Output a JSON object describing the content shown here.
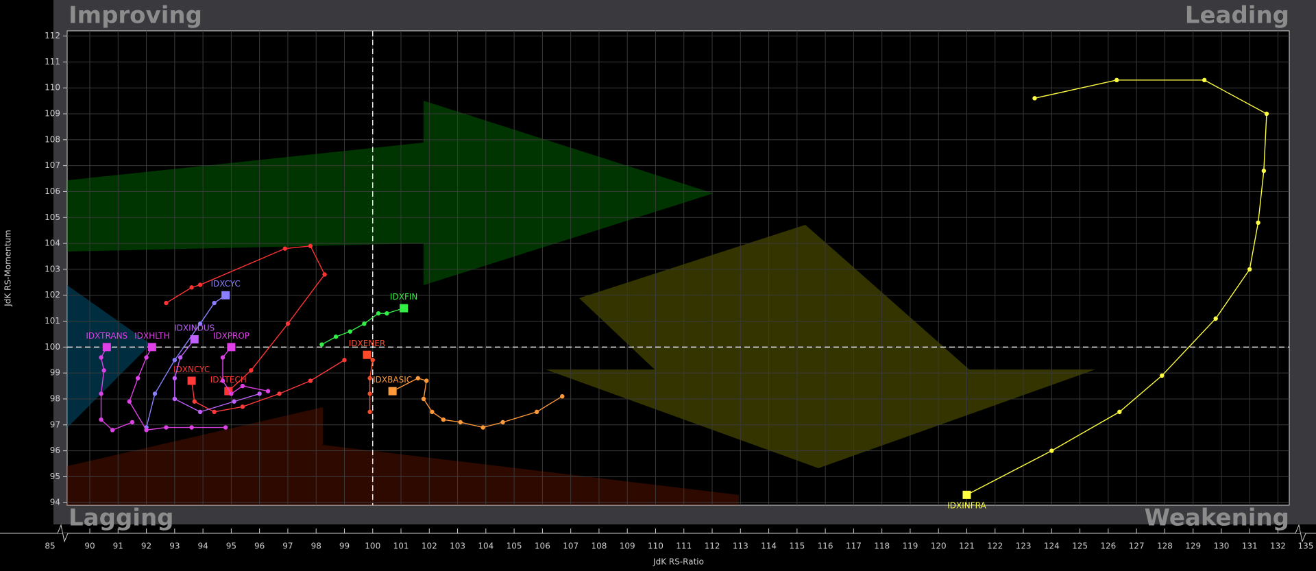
{
  "chart_data": {
    "type": "rrg",
    "x_label": "JdK RS-Ratio",
    "y_label": "JdK RS-Momentum",
    "quadrants": {
      "top_left": "Improving",
      "top_right": "Leading",
      "bottom_left": "Lagging",
      "bottom_right": "Weakening"
    },
    "xlim": [
      89.2,
      132.4
    ],
    "ylim": [
      93.9,
      112.2
    ],
    "xticks": [
      90,
      91,
      92,
      93,
      94,
      95,
      96,
      97,
      98,
      99,
      100,
      101,
      102,
      103,
      104,
      105,
      106,
      107,
      108,
      109,
      110,
      111,
      112,
      113,
      114,
      115,
      116,
      117,
      118,
      119,
      120,
      121,
      122,
      123,
      124,
      125,
      126,
      127,
      128,
      129,
      130,
      131,
      132
    ],
    "x_break_ticks": [
      85,
      135
    ],
    "yticks": [
      94,
      95,
      96,
      97,
      98,
      99,
      100,
      101,
      102,
      103,
      104,
      105,
      106,
      107,
      108,
      109,
      110,
      111,
      112
    ],
    "reference": {
      "x": 100,
      "y": 100
    },
    "grid": true,
    "series": [
      {
        "name": "IDXINFRA",
        "color": "#ffff40",
        "x": [
          123.4,
          126.3,
          129.4,
          131.6,
          131.5,
          131.3,
          131.0,
          129.8,
          127.9,
          126.4,
          124.0,
          121.0
        ],
        "y": [
          109.6,
          110.3,
          110.3,
          109.0,
          106.8,
          104.8,
          103.0,
          101.1,
          98.9,
          97.5,
          96.0,
          94.3
        ]
      },
      {
        "name": "IDXFIN",
        "color": "#33ee44",
        "x": [
          98.2,
          98.7,
          99.2,
          99.7,
          100.2,
          100.5,
          101.1
        ],
        "y": [
          100.1,
          100.4,
          100.6,
          100.9,
          101.3,
          101.3,
          101.5
        ]
      },
      {
        "name": "IDXENER",
        "color": "#ff4a2a",
        "x": [
          99.9,
          99.9,
          99.9,
          100.0,
          99.8
        ],
        "y": [
          97.5,
          98.2,
          98.8,
          99.5,
          99.7
        ]
      },
      {
        "name": "IDXBASIC",
        "color": "#ff9a3a",
        "x": [
          106.7,
          105.8,
          104.6,
          103.9,
          103.1,
          102.5,
          102.1,
          101.8,
          101.9,
          101.6,
          100.7
        ],
        "y": [
          98.1,
          97.5,
          97.1,
          96.9,
          97.1,
          97.2,
          97.5,
          98.0,
          98.7,
          98.8,
          98.3
        ]
      },
      {
        "name": "IDXTECH",
        "color": "#ff3333",
        "x": [
          92.7,
          93.6,
          93.9,
          96.9,
          97.8,
          98.3,
          97.0,
          95.7,
          94.9
        ],
        "y": [
          101.7,
          102.3,
          102.4,
          103.8,
          103.9,
          102.8,
          100.9,
          99.1,
          98.3
        ]
      },
      {
        "name": "IDXNCYC",
        "color": "#ff3a3a",
        "x": [
          99.0,
          97.8,
          96.7,
          95.4,
          94.4,
          93.7,
          93.6
        ],
        "y": [
          99.5,
          98.7,
          98.2,
          97.7,
          97.5,
          97.9,
          98.7
        ]
      },
      {
        "name": "IDXCYC",
        "color": "#8a80ff",
        "x": [
          92.0,
          92.3,
          93.0,
          93.9,
          94.4,
          94.8
        ],
        "y": [
          96.9,
          98.2,
          99.5,
          100.9,
          101.7,
          102.0
        ]
      },
      {
        "name": "IDXINDUS",
        "color": "#c060ff",
        "x": [
          96.0,
          95.1,
          93.9,
          93.0,
          93.0,
          93.2,
          93.7
        ],
        "y": [
          98.2,
          97.9,
          97.5,
          98.0,
          98.8,
          99.6,
          100.3
        ]
      },
      {
        "name": "IDXPROP",
        "color": "#e040e8",
        "x": [
          96.3,
          95.4,
          95.0,
          94.7,
          94.7,
          95.0
        ],
        "y": [
          98.3,
          98.5,
          98.2,
          98.7,
          99.6,
          100.0
        ]
      },
      {
        "name": "IDXHLTH",
        "color": "#e040e8",
        "x": [
          94.8,
          93.6,
          92.7,
          92.0,
          91.4,
          91.7,
          92.0,
          92.2
        ],
        "y": [
          96.9,
          96.9,
          96.9,
          96.8,
          97.9,
          98.8,
          99.6,
          100.0
        ]
      },
      {
        "name": "IDXTRANS",
        "color": "#e040e8",
        "x": [
          91.5,
          90.8,
          90.4,
          90.4,
          90.5,
          90.4,
          90.6
        ],
        "y": [
          97.1,
          96.8,
          97.2,
          98.2,
          99.1,
          99.6,
          100.0
        ]
      }
    ]
  }
}
